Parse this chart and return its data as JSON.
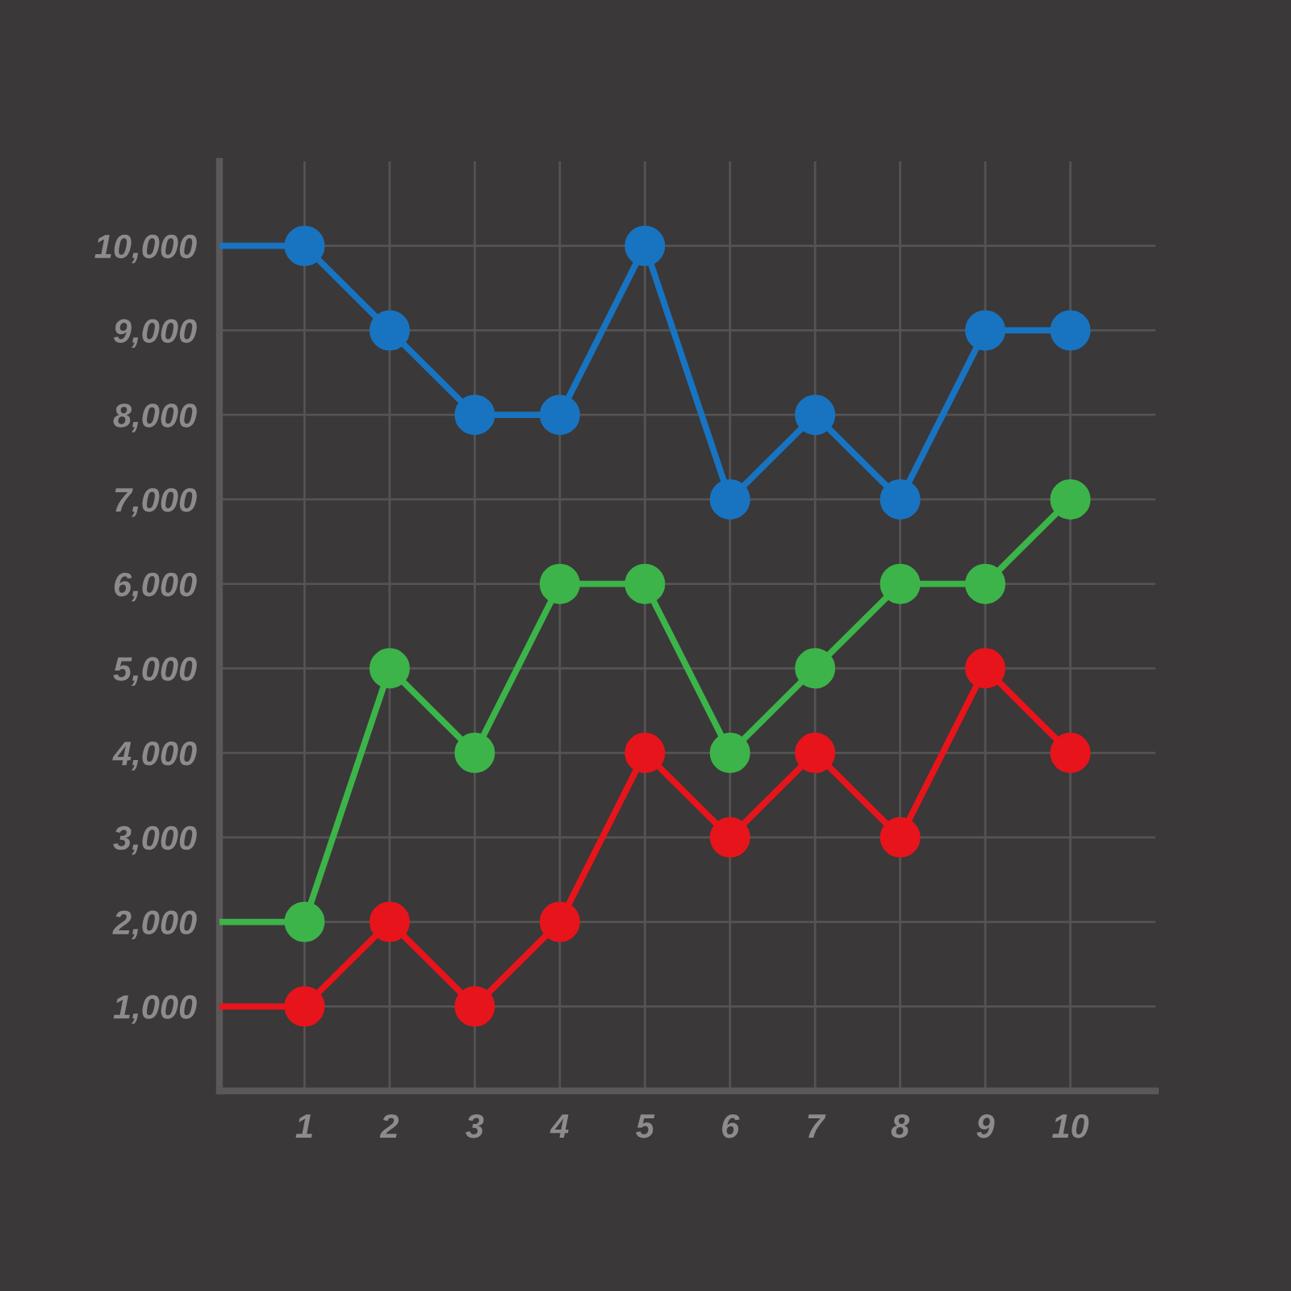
{
  "chart_data": {
    "type": "line",
    "xlim": [
      0,
      11
    ],
    "ylim": [
      0,
      11000
    ],
    "xticks": [
      1,
      2,
      3,
      4,
      5,
      6,
      7,
      8,
      9,
      10
    ],
    "yticks": [
      {
        "value": 1000,
        "label": "1,000"
      },
      {
        "value": 2000,
        "label": "2,000"
      },
      {
        "value": 3000,
        "label": "3,000"
      },
      {
        "value": 4000,
        "label": "4,000"
      },
      {
        "value": 5000,
        "label": "5,000"
      },
      {
        "value": 6000,
        "label": "6,000"
      },
      {
        "value": 7000,
        "label": "7,000"
      },
      {
        "value": 8000,
        "label": "8,000"
      },
      {
        "value": 9000,
        "label": "9,000"
      },
      {
        "value": 10000,
        "label": "10,000"
      }
    ],
    "grid": true,
    "line_style": "solid",
    "series": [
      {
        "color": "#1874c1",
        "x": [
          0,
          1
        ],
        "values": [
          10000,
          10000
        ]
      },
      {
        "color": "#1874c1",
        "marker": "circle",
        "x": [
          1,
          2,
          3,
          4,
          5,
          6,
          7,
          8,
          9,
          10
        ],
        "values": [
          10000,
          9000,
          8000,
          8000,
          10000,
          7000,
          8000,
          7000,
          9000,
          9000
        ]
      },
      {
        "color": "#3cb44a",
        "x": [
          0,
          1
        ],
        "values": [
          2000,
          2000
        ]
      },
      {
        "color": "#3cb44a",
        "marker": "circle",
        "x": [
          1,
          2,
          3,
          4,
          5,
          6,
          7,
          8,
          9,
          10
        ],
        "values": [
          2000,
          5000,
          4000,
          6000,
          6000,
          4000,
          5000,
          6000,
          6000,
          7000
        ]
      },
      {
        "color": "#e8141b",
        "x": [
          0,
          1
        ],
        "values": [
          1000,
          1000
        ]
      },
      {
        "color": "#e8141b",
        "marker": "circle",
        "x": [
          1,
          2,
          3,
          4,
          5,
          6,
          7,
          8,
          9,
          10
        ],
        "values": [
          1000,
          2000,
          1000,
          2000,
          4000,
          3000,
          4000,
          3000,
          5000,
          4000
        ]
      }
    ]
  }
}
